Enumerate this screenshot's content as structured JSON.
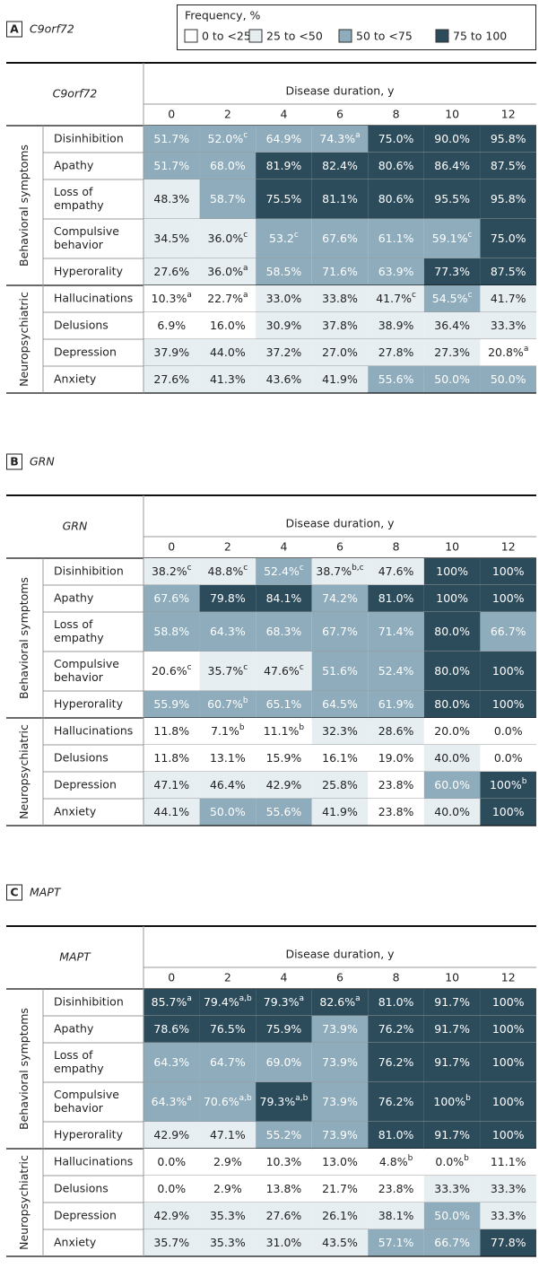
{
  "legend": {
    "title": "Frequency, %",
    "items": [
      {
        "label": "0 to <25",
        "color": "#ffffff"
      },
      {
        "label": "25 to <50",
        "color": "#e6eef2"
      },
      {
        "label": "50 to <75",
        "color": "#8eacbb"
      },
      {
        "label": "75 to 100",
        "color": "#2c4c5c"
      }
    ]
  },
  "panels": [
    {
      "letter": "A",
      "name": "C9orf72",
      "header": "C9orf72",
      "duration_label": "Disease duration, y",
      "years": [
        0,
        2,
        4,
        6,
        8,
        10,
        12
      ],
      "groups": [
        {
          "name": "Behavioral symptoms",
          "rows": [
            {
              "label": [
                "Disinhibition"
              ],
              "cells": [
                "51.7%",
                "52.0%",
                "64.9%",
                "74.3%",
                "75.0%",
                "90.0%",
                "95.8%"
              ],
              "notes": {
                "1": "c",
                "3": "a"
              },
              "levels": [
                2,
                2,
                2,
                2,
                3,
                3,
                3
              ]
            },
            {
              "label": [
                "Apathy"
              ],
              "cells": [
                "51.7%",
                "68.0%",
                "81.9%",
                "82.4%",
                "80.6%",
                "86.4%",
                "87.5%"
              ],
              "levels": [
                2,
                2,
                3,
                3,
                3,
                3,
                3
              ]
            },
            {
              "label": [
                "Loss of",
                "empathy"
              ],
              "cells": [
                "48.3%",
                "58.7%",
                "75.5%",
                "81.1%",
                "80.6%",
                "95.5%",
                "95.8%"
              ],
              "levels": [
                1,
                2,
                3,
                3,
                3,
                3,
                3
              ]
            },
            {
              "label": [
                "Compulsive",
                "behavior"
              ],
              "cells": [
                "34.5%",
                "36.0%",
                "53.2",
                "67.6%",
                "61.1%",
                "59.1%",
                "75.0%"
              ],
              "notes": {
                "1": "c",
                "2": "c",
                "5": "c"
              },
              "levels": [
                1,
                1,
                2,
                2,
                2,
                2,
                3
              ]
            },
            {
              "label": [
                "Hyperorality"
              ],
              "cells": [
                "27.6%",
                "36.0%",
                "58.5%",
                "71.6%",
                "63.9%",
                "77.3%",
                "87.5%"
              ],
              "notes": {
                "1": "a"
              },
              "levels": [
                1,
                1,
                2,
                2,
                2,
                3,
                3
              ]
            }
          ]
        },
        {
          "name": "Neuropsychiatric",
          "rows": [
            {
              "label": [
                "Hallucinations"
              ],
              "cells": [
                "10.3%",
                "22.7%",
                "33.0%",
                "33.8%",
                "41.7%",
                "54.5%",
                "41.7%"
              ],
              "notes": {
                "0": "a",
                "1": "a",
                "4": "c",
                "5": "c"
              },
              "levels": [
                0,
                0,
                1,
                1,
                1,
                2,
                1
              ]
            },
            {
              "label": [
                "Delusions"
              ],
              "cells": [
                "6.9%",
                "16.0%",
                "30.9%",
                "37.8%",
                "38.9%",
                "36.4%",
                "33.3%"
              ],
              "levels": [
                0,
                0,
                1,
                1,
                1,
                1,
                1
              ]
            },
            {
              "label": [
                "Depression"
              ],
              "cells": [
                "37.9%",
                "44.0%",
                "37.2%",
                "27.0%",
                "27.8%",
                "27.3%",
                "20.8%"
              ],
              "notes": {
                "6": "a"
              },
              "levels": [
                1,
                1,
                1,
                1,
                1,
                1,
                0
              ]
            },
            {
              "label": [
                "Anxiety"
              ],
              "cells": [
                "27.6%",
                "41.3%",
                "43.6%",
                "41.9%",
                "55.6%",
                "50.0%",
                "50.0%"
              ],
              "levels": [
                1,
                1,
                1,
                1,
                2,
                2,
                2
              ]
            }
          ]
        }
      ]
    },
    {
      "letter": "B",
      "name": "GRN",
      "header": "GRN",
      "duration_label": "Disease duration, y",
      "years": [
        0,
        2,
        4,
        6,
        8,
        10,
        12
      ],
      "groups": [
        {
          "name": "Behavioral symptoms",
          "rows": [
            {
              "label": [
                "Disinhibition"
              ],
              "cells": [
                "38.2%",
                "48.8%",
                "52.4%",
                "38.7%",
                "47.6%",
                "100%",
                "100%"
              ],
              "notes": {
                "0": "c",
                "1": "c",
                "2": "c",
                "3": "b,c"
              },
              "levels": [
                1,
                1,
                2,
                1,
                1,
                3,
                3
              ]
            },
            {
              "label": [
                "Apathy"
              ],
              "cells": [
                "67.6%",
                "79.8%",
                "84.1%",
                "74.2%",
                "81.0%",
                "100%",
                "100%"
              ],
              "levels": [
                2,
                3,
                3,
                2,
                3,
                3,
                3
              ]
            },
            {
              "label": [
                "Loss of",
                "empathy"
              ],
              "cells": [
                "58.8%",
                "64.3%",
                "68.3%",
                "67.7%",
                "71.4%",
                "80.0%",
                "66.7%"
              ],
              "levels": [
                2,
                2,
                2,
                2,
                2,
                3,
                2
              ]
            },
            {
              "label": [
                "Compulsive",
                "behavior"
              ],
              "cells": [
                "20.6%",
                "35.7%",
                "47.6%",
                "51.6%",
                "52.4%",
                "80.0%",
                "100%"
              ],
              "notes": {
                "0": "c",
                "1": "c",
                "2": "c"
              },
              "levels": [
                0,
                1,
                1,
                2,
                2,
                3,
                3
              ]
            },
            {
              "label": [
                "Hyperorality"
              ],
              "cells": [
                "55.9%",
                "60.7%",
                "65.1%",
                "64.5%",
                "61.9%",
                "80.0%",
                "100%"
              ],
              "notes": {
                "1": "b"
              },
              "levels": [
                2,
                2,
                2,
                2,
                2,
                3,
                3
              ]
            }
          ]
        },
        {
          "name": "Neuropsychiatric",
          "rows": [
            {
              "label": [
                "Hallucinations"
              ],
              "cells": [
                "11.8%",
                "7.1%",
                "11.1%",
                "32.3%",
                "28.6%",
                "20.0%",
                "0.0%"
              ],
              "notes": {
                "1": "b",
                "2": "b"
              },
              "levels": [
                0,
                0,
                0,
                1,
                1,
                0,
                0
              ]
            },
            {
              "label": [
                "Delusions"
              ],
              "cells": [
                "11.8%",
                "13.1%",
                "15.9%",
                "16.1%",
                "19.0%",
                "40.0%",
                "0.0%"
              ],
              "levels": [
                0,
                0,
                0,
                0,
                0,
                1,
                0
              ]
            },
            {
              "label": [
                "Depression"
              ],
              "cells": [
                "47.1%",
                "46.4%",
                "42.9%",
                "25.8%",
                "23.8%",
                "60.0%",
                "100%"
              ],
              "notes": {
                "6": "b"
              },
              "levels": [
                1,
                1,
                1,
                1,
                0,
                2,
                3
              ]
            },
            {
              "label": [
                "Anxiety"
              ],
              "cells": [
                "44.1%",
                "50.0%",
                "55.6%",
                "41.9%",
                "23.8%",
                "40.0%",
                "100%"
              ],
              "levels": [
                1,
                2,
                2,
                1,
                0,
                1,
                3
              ]
            }
          ]
        }
      ]
    },
    {
      "letter": "C",
      "name": "MAPT",
      "header": "MAPT",
      "duration_label": "Disease duration, y",
      "years": [
        0,
        2,
        4,
        6,
        8,
        10,
        12
      ],
      "groups": [
        {
          "name": "Behavioral symptoms",
          "rows": [
            {
              "label": [
                "Disinhibition"
              ],
              "cells": [
                "85.7%",
                "79.4%",
                "79.3%",
                "82.6%",
                "81.0%",
                "91.7%",
                "100%"
              ],
              "notes": {
                "0": "a",
                "1": "a,b",
                "2": "a",
                "3": "a"
              },
              "levels": [
                3,
                3,
                3,
                3,
                3,
                3,
                3
              ]
            },
            {
              "label": [
                "Apathy"
              ],
              "cells": [
                "78.6%",
                "76.5%",
                "75.9%",
                "73.9%",
                "76.2%",
                "91.7%",
                "100%"
              ],
              "levels": [
                3,
                3,
                3,
                2,
                3,
                3,
                3
              ]
            },
            {
              "label": [
                "Loss of",
                "empathy"
              ],
              "cells": [
                "64.3%",
                "64.7%",
                "69.0%",
                "73.9%",
                "76.2%",
                "91.7%",
                "100%"
              ],
              "levels": [
                2,
                2,
                2,
                2,
                3,
                3,
                3
              ]
            },
            {
              "label": [
                "Compulsive",
                "behavior"
              ],
              "cells": [
                "64.3%",
                "70.6%",
                "79.3%",
                "73.9%",
                "76.2%",
                "100%",
                "100%"
              ],
              "notes": {
                "0": "a",
                "1": "a,b",
                "2": "a,b",
                "5": "b"
              },
              "levels": [
                2,
                2,
                3,
                2,
                3,
                3,
                3
              ]
            },
            {
              "label": [
                "Hyperorality"
              ],
              "cells": [
                "42.9%",
                "47.1%",
                "55.2%",
                "73.9%",
                "81.0%",
                "91.7%",
                "100%"
              ],
              "levels": [
                1,
                1,
                2,
                2,
                3,
                3,
                3
              ]
            }
          ]
        },
        {
          "name": "Neuropsychiatric",
          "rows": [
            {
              "label": [
                "Hallucinations"
              ],
              "cells": [
                "0.0%",
                "2.9%",
                "10.3%",
                "13.0%",
                "4.8%",
                "0.0%",
                "11.1%"
              ],
              "notes": {
                "4": "b",
                "5": "b"
              },
              "levels": [
                0,
                0,
                0,
                0,
                0,
                0,
                0
              ]
            },
            {
              "label": [
                "Delusions"
              ],
              "cells": [
                "0.0%",
                "2.9%",
                "13.8%",
                "21.7%",
                "23.8%",
                "33.3%",
                "33.3%"
              ],
              "levels": [
                0,
                0,
                0,
                0,
                0,
                1,
                1
              ]
            },
            {
              "label": [
                "Depression"
              ],
              "cells": [
                "42.9%",
                "35.3%",
                "27.6%",
                "26.1%",
                "38.1%",
                "50.0%",
                "33.3%"
              ],
              "levels": [
                1,
                1,
                1,
                1,
                1,
                2,
                1
              ]
            },
            {
              "label": [
                "Anxiety"
              ],
              "cells": [
                "35.7%",
                "35.3%",
                "31.0%",
                "43.5%",
                "57.1%",
                "66.7%",
                "77.8%"
              ],
              "levels": [
                1,
                1,
                1,
                1,
                2,
                2,
                3
              ]
            }
          ]
        }
      ]
    }
  ]
}
